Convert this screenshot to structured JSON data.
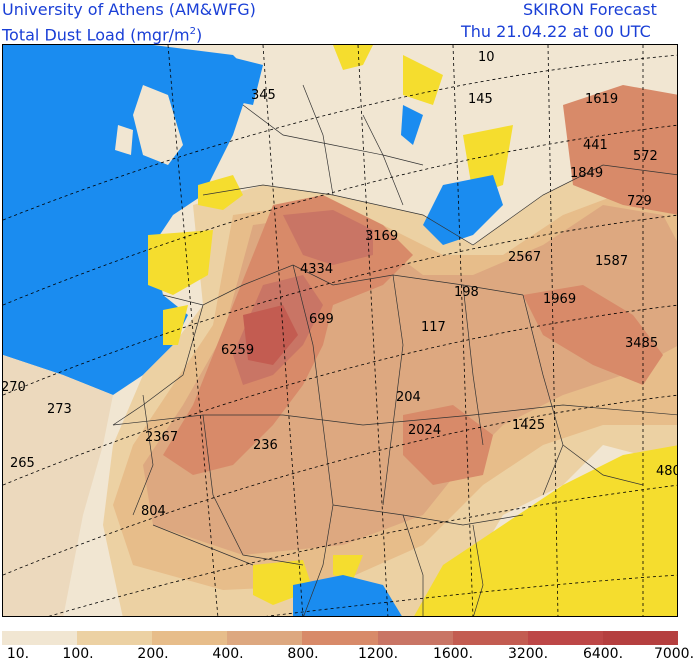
{
  "header": {
    "org": "University of Athens (AM&WFG)",
    "variable": "Total Dust Load (mgr/m",
    "variable_sup": "2",
    "variable_end": ")",
    "product": "SKIRON Forecast",
    "valid_time": "Thu 21.04.22 at 00 UTC"
  },
  "map_labels": [
    {
      "text": "10"
    },
    {
      "text": "345"
    },
    {
      "text": "145"
    },
    {
      "text": "1619"
    },
    {
      "text": "441"
    },
    {
      "text": "572"
    },
    {
      "text": "1849"
    },
    {
      "text": "729"
    },
    {
      "text": "3169"
    },
    {
      "text": "4334"
    },
    {
      "text": "2567"
    },
    {
      "text": "1587"
    },
    {
      "text": "198"
    },
    {
      "text": "1969"
    },
    {
      "text": "699"
    },
    {
      "text": "117"
    },
    {
      "text": "6259"
    },
    {
      "text": "3485"
    },
    {
      "text": "270"
    },
    {
      "text": "273"
    },
    {
      "text": "204"
    },
    {
      "text": "2367"
    },
    {
      "text": "2024"
    },
    {
      "text": "1425"
    },
    {
      "text": "236"
    },
    {
      "text": "265"
    },
    {
      "text": "480"
    },
    {
      "text": "804"
    }
  ],
  "scale": {
    "labels": [
      "10.",
      "100.",
      "200.",
      "400.",
      "800.",
      "1200.",
      "1600.",
      "3200.",
      "6400.",
      "7000."
    ],
    "colors": [
      "#f1e6d2",
      "#ecd1a3",
      "#e7bd8a",
      "#dda880",
      "#d88a69",
      "#c97565",
      "#c35c51",
      "#bd4747",
      "#b53f3f"
    ]
  },
  "colors": {
    "sea": "#1a8cf0",
    "no_dust": "#f5dd2e",
    "header_text": "#1a3fd6"
  }
}
